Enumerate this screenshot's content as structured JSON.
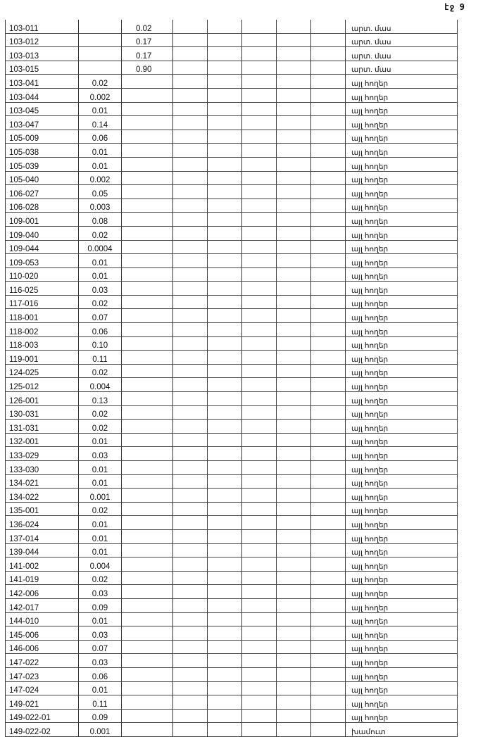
{
  "page_label": "էջ 9",
  "rows": [
    [
      "103-011",
      "",
      "0.02",
      "արտ. մաս"
    ],
    [
      "103-012",
      "",
      "0.17",
      "արտ. մաս"
    ],
    [
      "103-013",
      "",
      "0.17",
      "արտ. մաս"
    ],
    [
      "103-015",
      "",
      "0.90",
      "արտ. մաս"
    ],
    [
      "103-041",
      "0.02",
      "",
      "այլ հողեր"
    ],
    [
      "103-044",
      "0.002",
      "",
      "այլ հողեր"
    ],
    [
      "103-045",
      "0.01",
      "",
      "այլ հողեր"
    ],
    [
      "103-047",
      "0.14",
      "",
      "այլ հողեր"
    ],
    [
      "105-009",
      "0.06",
      "",
      "այլ հողեր"
    ],
    [
      "105-038",
      "0.01",
      "",
      "այլ հողեր"
    ],
    [
      "105-039",
      "0.01",
      "",
      "այլ հողեր"
    ],
    [
      "105-040",
      "0.002",
      "",
      "այլ հողեր"
    ],
    [
      "106-027",
      "0.05",
      "",
      "այլ հողեր"
    ],
    [
      "106-028",
      "0.003",
      "",
      "այլ հողեր"
    ],
    [
      "109-001",
      "0.08",
      "",
      "այլ հողեր"
    ],
    [
      "109-040",
      "0.02",
      "",
      "այլ հողեր"
    ],
    [
      "109-044",
      "0.0004",
      "",
      "այլ հողեր"
    ],
    [
      "109-053",
      "0.01",
      "",
      "այլ հողեր"
    ],
    [
      "110-020",
      "0.01",
      "",
      "այլ հողեր"
    ],
    [
      "116-025",
      "0.03",
      "",
      "այլ հողեր"
    ],
    [
      "117-016",
      "0.02",
      "",
      "այլ հողեր"
    ],
    [
      "118-001",
      "0.07",
      "",
      "այլ հողեր"
    ],
    [
      "118-002",
      "0.06",
      "",
      "այլ հողեր"
    ],
    [
      "118-003",
      "0.10",
      "",
      "այլ հողեր"
    ],
    [
      "119-001",
      "0.11",
      "",
      "այլ հողեր"
    ],
    [
      "124-025",
      "0.02",
      "",
      "այլ հողեր"
    ],
    [
      "125-012",
      "0.004",
      "",
      "այլ հողեր"
    ],
    [
      "126-001",
      "0.13",
      "",
      "այլ հողեր"
    ],
    [
      "130-031",
      "0.02",
      "",
      "այլ հողեր"
    ],
    [
      "131-031",
      "0.02",
      "",
      "այլ հողեր"
    ],
    [
      "132-001",
      "0.01",
      "",
      "այլ հողեր"
    ],
    [
      "133-029",
      "0.03",
      "",
      "այլ հողեր"
    ],
    [
      "133-030",
      "0.01",
      "",
      "այլ հողեր"
    ],
    [
      "134-021",
      "0.01",
      "",
      "այլ հողեր"
    ],
    [
      "134-022",
      "0.001",
      "",
      "այլ հողեր"
    ],
    [
      "135-001",
      "0.02",
      "",
      "այլ հողեր"
    ],
    [
      "136-024",
      "0.01",
      "",
      "այլ հողեր"
    ],
    [
      "137-014",
      "0.01",
      "",
      "այլ հողեր"
    ],
    [
      "139-044",
      "0.01",
      "",
      "այլ հողեր"
    ],
    [
      "141-002",
      "0.004",
      "",
      "այլ հողեր"
    ],
    [
      "141-019",
      "0.02",
      "",
      "այլ հողեր"
    ],
    [
      "142-006",
      "0.03",
      "",
      "այլ հողեր"
    ],
    [
      "142-017",
      "0.09",
      "",
      "այլ հողեր"
    ],
    [
      "144-010",
      "0.01",
      "",
      "այլ հողեր"
    ],
    [
      "145-006",
      "0.03",
      "",
      "այլ հողեր"
    ],
    [
      "146-006",
      "0.07",
      "",
      "այլ հողեր"
    ],
    [
      "147-022",
      "0.03",
      "",
      "այլ հողեր"
    ],
    [
      "147-023",
      "0.06",
      "",
      "այլ հողեր"
    ],
    [
      "147-024",
      "0.01",
      "",
      "այլ հողեր"
    ],
    [
      "149-021",
      "0.11",
      "",
      "այլ հողեր"
    ],
    [
      "149-022-01",
      "0.09",
      "",
      "այլ հողեր"
    ],
    [
      "149-022-02",
      "0.001",
      "",
      "խամուտ"
    ]
  ]
}
